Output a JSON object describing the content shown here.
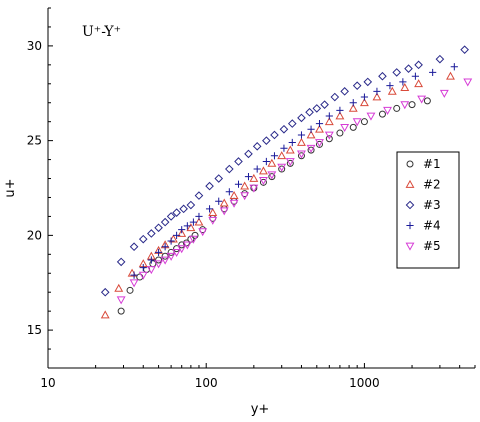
{
  "chart_data": {
    "type": "scatter",
    "title": "U⁺-Y⁺",
    "xlabel": "y+",
    "ylabel": "u+",
    "xscale": "log",
    "xlim": [
      10,
      5000
    ],
    "ylim": [
      13,
      32
    ],
    "xticks": [
      10,
      100,
      1000
    ],
    "xtick_labels": [
      "10",
      "100",
      "1000"
    ],
    "yticks": [
      15,
      20,
      25,
      30
    ],
    "ytick_labels": [
      "15",
      "20",
      "25",
      "30"
    ],
    "grid": false,
    "legend_position": "right",
    "series": [
      {
        "name": "#1",
        "marker": "circle",
        "color": "#333333",
        "points": [
          [
            29,
            16.0
          ],
          [
            33,
            17.1
          ],
          [
            38,
            17.8
          ],
          [
            42,
            18.2
          ],
          [
            46,
            18.5
          ],
          [
            50,
            18.7
          ],
          [
            55,
            18.9
          ],
          [
            60,
            19.1
          ],
          [
            65,
            19.3
          ],
          [
            70,
            19.5
          ],
          [
            75,
            19.6
          ],
          [
            80,
            19.8
          ],
          [
            85,
            20.0
          ],
          [
            95,
            20.3
          ],
          [
            110,
            20.9
          ],
          [
            130,
            21.4
          ],
          [
            150,
            21.8
          ],
          [
            175,
            22.2
          ],
          [
            200,
            22.5
          ],
          [
            230,
            22.8
          ],
          [
            260,
            23.1
          ],
          [
            300,
            23.5
          ],
          [
            340,
            23.8
          ],
          [
            400,
            24.2
          ],
          [
            460,
            24.5
          ],
          [
            520,
            24.8
          ],
          [
            600,
            25.1
          ],
          [
            700,
            25.4
          ],
          [
            850,
            25.7
          ],
          [
            1000,
            26.0
          ],
          [
            1300,
            26.4
          ],
          [
            1600,
            26.7
          ],
          [
            2000,
            26.9
          ],
          [
            2500,
            27.1
          ]
        ]
      },
      {
        "name": "#2",
        "marker": "triangle-up",
        "color": "#d94a3a",
        "points": [
          [
            23,
            15.8
          ],
          [
            28,
            17.2
          ],
          [
            34,
            18.0
          ],
          [
            40,
            18.5
          ],
          [
            45,
            18.9
          ],
          [
            50,
            19.2
          ],
          [
            55,
            19.5
          ],
          [
            62,
            19.8
          ],
          [
            70,
            20.1
          ],
          [
            80,
            20.4
          ],
          [
            90,
            20.7
          ],
          [
            110,
            21.2
          ],
          [
            130,
            21.7
          ],
          [
            150,
            22.1
          ],
          [
            175,
            22.6
          ],
          [
            200,
            23.0
          ],
          [
            230,
            23.4
          ],
          [
            260,
            23.8
          ],
          [
            300,
            24.2
          ],
          [
            340,
            24.5
          ],
          [
            400,
            24.9
          ],
          [
            460,
            25.3
          ],
          [
            520,
            25.6
          ],
          [
            600,
            26.0
          ],
          [
            700,
            26.3
          ],
          [
            850,
            26.7
          ],
          [
            1000,
            27.0
          ],
          [
            1200,
            27.3
          ],
          [
            1500,
            27.6
          ],
          [
            1800,
            27.8
          ],
          [
            2200,
            28.0
          ],
          [
            3500,
            28.4
          ]
        ]
      },
      {
        "name": "#3",
        "marker": "diamond",
        "color": "#2a2a8a",
        "points": [
          [
            23,
            17.0
          ],
          [
            29,
            18.6
          ],
          [
            35,
            19.4
          ],
          [
            40,
            19.8
          ],
          [
            45,
            20.1
          ],
          [
            50,
            20.4
          ],
          [
            55,
            20.7
          ],
          [
            60,
            21.0
          ],
          [
            65,
            21.2
          ],
          [
            72,
            21.4
          ],
          [
            80,
            21.6
          ],
          [
            90,
            22.1
          ],
          [
            105,
            22.6
          ],
          [
            120,
            23.0
          ],
          [
            140,
            23.5
          ],
          [
            160,
            23.9
          ],
          [
            185,
            24.3
          ],
          [
            210,
            24.7
          ],
          [
            240,
            25.0
          ],
          [
            270,
            25.3
          ],
          [
            310,
            25.6
          ],
          [
            350,
            25.9
          ],
          [
            400,
            26.2
          ],
          [
            450,
            26.5
          ],
          [
            500,
            26.7
          ],
          [
            560,
            26.9
          ],
          [
            650,
            27.3
          ],
          [
            750,
            27.6
          ],
          [
            900,
            27.9
          ],
          [
            1050,
            28.1
          ],
          [
            1300,
            28.4
          ],
          [
            1600,
            28.6
          ],
          [
            1900,
            28.8
          ],
          [
            2200,
            29.0
          ],
          [
            3000,
            29.3
          ],
          [
            4300,
            29.8
          ]
        ]
      },
      {
        "name": "#4",
        "marker": "plus",
        "color": "#1a1a9a",
        "points": [
          [
            35,
            17.9
          ],
          [
            40,
            18.3
          ],
          [
            45,
            18.7
          ],
          [
            50,
            19.1
          ],
          [
            55,
            19.4
          ],
          [
            60,
            19.7
          ],
          [
            65,
            20.0
          ],
          [
            70,
            20.3
          ],
          [
            76,
            20.5
          ],
          [
            83,
            20.7
          ],
          [
            90,
            21.0
          ],
          [
            105,
            21.4
          ],
          [
            120,
            21.8
          ],
          [
            140,
            22.3
          ],
          [
            160,
            22.7
          ],
          [
            185,
            23.1
          ],
          [
            210,
            23.5
          ],
          [
            240,
            23.9
          ],
          [
            270,
            24.2
          ],
          [
            310,
            24.6
          ],
          [
            350,
            24.9
          ],
          [
            400,
            25.3
          ],
          [
            460,
            25.6
          ],
          [
            520,
            25.9
          ],
          [
            600,
            26.3
          ],
          [
            700,
            26.6
          ],
          [
            850,
            27.0
          ],
          [
            1000,
            27.3
          ],
          [
            1200,
            27.6
          ],
          [
            1450,
            27.9
          ],
          [
            1750,
            28.1
          ],
          [
            2100,
            28.4
          ],
          [
            2700,
            28.6
          ],
          [
            3700,
            28.9
          ]
        ]
      },
      {
        "name": "#5",
        "marker": "triangle-down",
        "color": "#d63cd6",
        "points": [
          [
            29,
            16.6
          ],
          [
            35,
            17.5
          ],
          [
            40,
            17.9
          ],
          [
            45,
            18.2
          ],
          [
            50,
            18.5
          ],
          [
            55,
            18.7
          ],
          [
            60,
            18.9
          ],
          [
            65,
            19.1
          ],
          [
            70,
            19.3
          ],
          [
            76,
            19.5
          ],
          [
            83,
            19.8
          ],
          [
            95,
            20.2
          ],
          [
            110,
            20.8
          ],
          [
            130,
            21.3
          ],
          [
            150,
            21.7
          ],
          [
            175,
            22.1
          ],
          [
            200,
            22.5
          ],
          [
            230,
            22.9
          ],
          [
            260,
            23.2
          ],
          [
            300,
            23.6
          ],
          [
            340,
            23.9
          ],
          [
            400,
            24.3
          ],
          [
            460,
            24.6
          ],
          [
            520,
            24.9
          ],
          [
            600,
            25.3
          ],
          [
            750,
            25.7
          ],
          [
            900,
            26.0
          ],
          [
            1100,
            26.3
          ],
          [
            1400,
            26.6
          ],
          [
            1800,
            26.9
          ],
          [
            2300,
            27.2
          ],
          [
            3200,
            27.5
          ],
          [
            4500,
            28.1
          ]
        ]
      }
    ]
  }
}
